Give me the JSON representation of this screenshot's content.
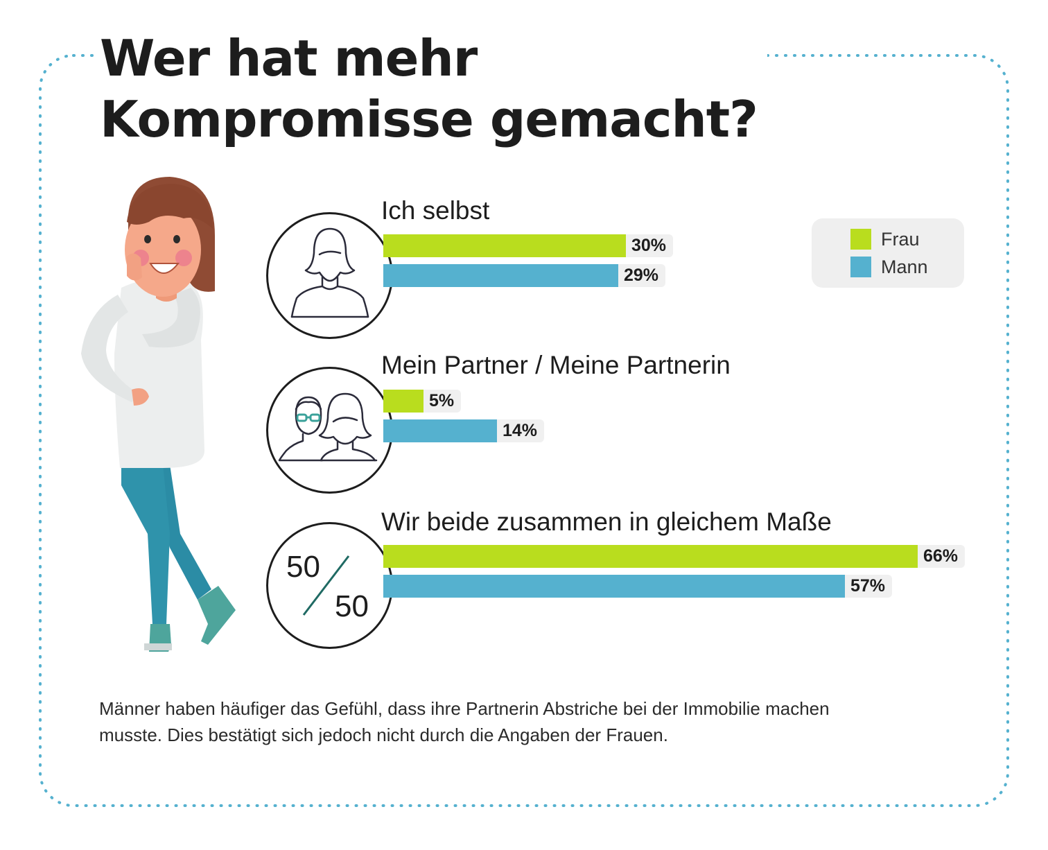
{
  "title": {
    "line1": "Wer hat mehr",
    "line2": "Kompromisse gemacht?"
  },
  "legend": {
    "items": [
      {
        "label": "Frau",
        "color": "#b9dd1e"
      },
      {
        "label": "Mann",
        "color": "#55b1cf"
      }
    ]
  },
  "chart_data": {
    "type": "bar",
    "orientation": "horizontal",
    "title": "Wer hat mehr Kompromisse gemacht?",
    "categories": [
      "Ich selbst",
      "Mein Partner / Meine Partnerin",
      "Wir beide zusammen in gleichem Maße"
    ],
    "series": [
      {
        "name": "Frau",
        "color": "#b9dd1e",
        "values": [
          30,
          5,
          66
        ],
        "labels": [
          "30%",
          "5%",
          "66%"
        ]
      },
      {
        "name": "Mann",
        "color": "#55b1cf",
        "values": [
          29,
          14,
          57
        ],
        "labels": [
          "29%",
          "14%",
          "57%"
        ]
      }
    ],
    "unit": "%",
    "legend_position": "top-right",
    "grid": false
  },
  "icons": {
    "group_icons": [
      "woman-icon",
      "couple-icon",
      "fifty-fifty-icon"
    ],
    "fifty_top": "50",
    "fifty_bottom": "50"
  },
  "note": "Männer haben häufiger das Gefühl, dass ihre Partnerin Abstriche bei der Immobilie machen musste. Dies bestätigt sich jedoch nicht durch die Angaben der Frauen.",
  "colors": {
    "frame": "#55b1cf",
    "text": "#1d1d1d"
  }
}
